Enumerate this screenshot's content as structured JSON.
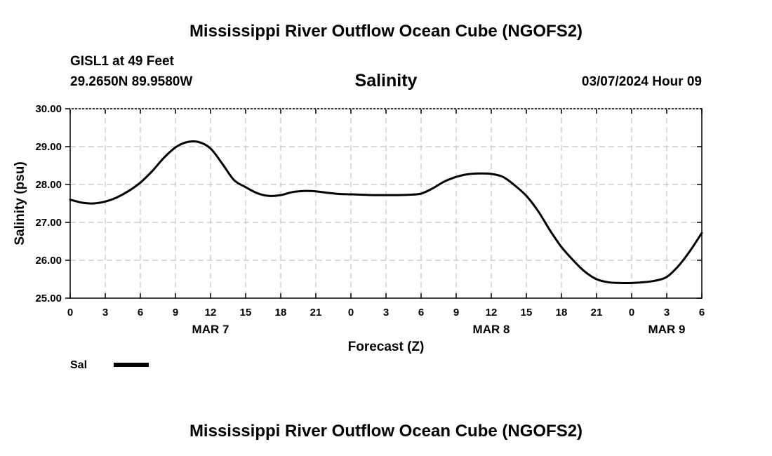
{
  "header": {
    "title": "Mississippi River Outflow Ocean Cube (NGOFS2)",
    "station": "GISL1 at 49 Feet",
    "coords": "29.2650N  89.9580W",
    "datetime": "03/07/2024 Hour 09",
    "bottom_title": "Mississippi River Outflow Ocean Cube (NGOFS2)"
  },
  "chart_data": {
    "type": "line",
    "title": "Salinity",
    "xlabel": "Forecast (Z)",
    "ylabel": "Salinity (psu)",
    "xlim": [
      0,
      54
    ],
    "ylim": [
      25.0,
      30.0
    ],
    "grid": true,
    "x_ticks": [
      {
        "x": 0,
        "label": "0"
      },
      {
        "x": 3,
        "label": "3"
      },
      {
        "x": 6,
        "label": "6"
      },
      {
        "x": 9,
        "label": "9"
      },
      {
        "x": 12,
        "label": "12"
      },
      {
        "x": 15,
        "label": "15"
      },
      {
        "x": 18,
        "label": "18"
      },
      {
        "x": 21,
        "label": "21"
      },
      {
        "x": 24,
        "label": "0"
      },
      {
        "x": 27,
        "label": "3"
      },
      {
        "x": 30,
        "label": "6"
      },
      {
        "x": 33,
        "label": "9"
      },
      {
        "x": 36,
        "label": "12"
      },
      {
        "x": 39,
        "label": "15"
      },
      {
        "x": 42,
        "label": "18"
      },
      {
        "x": 45,
        "label": "21"
      },
      {
        "x": 48,
        "label": "0"
      },
      {
        "x": 51,
        "label": "3"
      },
      {
        "x": 54,
        "label": "6"
      }
    ],
    "date_labels": [
      {
        "x": 12,
        "label": "MAR 7"
      },
      {
        "x": 36,
        "label": "MAR 8"
      },
      {
        "x": 51,
        "label": "MAR 9"
      }
    ],
    "y_ticks": [
      "25.00",
      "26.00",
      "27.00",
      "28.00",
      "29.00",
      "30.00"
    ],
    "legend": {
      "label": "Sal",
      "position": "bottom-left"
    },
    "series": [
      {
        "name": "Sal",
        "x": [
          0,
          1,
          2,
          3,
          4,
          5,
          6,
          7,
          8,
          9,
          10,
          11,
          12,
          13,
          14,
          15,
          16,
          17,
          18,
          19,
          20,
          21,
          22,
          23,
          24,
          25,
          26,
          27,
          28,
          29,
          30,
          31,
          32,
          33,
          34,
          35,
          36,
          37,
          38,
          39,
          40,
          41,
          42,
          43,
          44,
          45,
          46,
          47,
          48,
          49,
          50,
          51,
          52,
          53,
          54
        ],
        "values": [
          27.6,
          27.52,
          27.5,
          27.55,
          27.66,
          27.83,
          28.05,
          28.35,
          28.7,
          28.98,
          29.12,
          29.12,
          28.95,
          28.55,
          28.12,
          27.93,
          27.77,
          27.7,
          27.72,
          27.8,
          27.83,
          27.82,
          27.78,
          27.75,
          27.74,
          27.73,
          27.72,
          27.72,
          27.72,
          27.73,
          27.76,
          27.9,
          28.08,
          28.2,
          28.27,
          28.29,
          28.28,
          28.2,
          27.98,
          27.7,
          27.3,
          26.8,
          26.35,
          26.0,
          25.7,
          25.5,
          25.42,
          25.4,
          25.4,
          25.42,
          25.46,
          25.56,
          25.85,
          26.25,
          26.72
        ]
      }
    ]
  }
}
